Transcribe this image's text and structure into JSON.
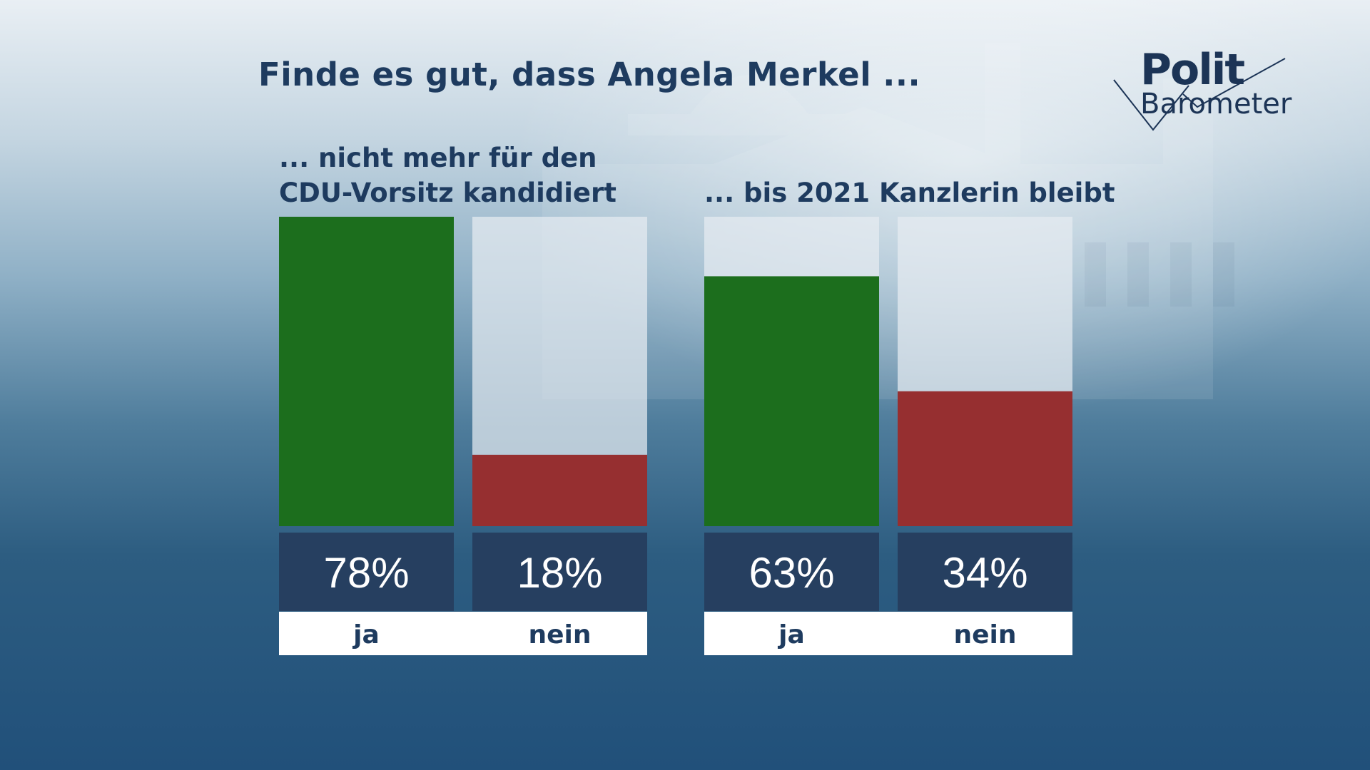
{
  "title": "Finde es gut, dass Angela Merkel ...",
  "logo": {
    "line1": "Polit",
    "line2": "Barometer"
  },
  "colors": {
    "ja": "#1c6e1d",
    "nein": "#962f30",
    "value_box": "#263f60",
    "bar_track": "#e6ecf1",
    "label_bg": "#ffffff",
    "text": "#1e3b5f"
  },
  "chart_data": [
    {
      "type": "bar",
      "title": "... nicht mehr für den CDU-Vorsitz kandidiert",
      "title_lines": [
        "... nicht mehr für den",
        "CDU-Vorsitz kandidiert"
      ],
      "categories": [
        "ja",
        "nein"
      ],
      "values": [
        78,
        18
      ],
      "value_labels": [
        "78%",
        "18%"
      ],
      "ylim": [
        0,
        78
      ],
      "unit": "%"
    },
    {
      "type": "bar",
      "title": "... bis 2021 Kanzlerin bleibt",
      "title_lines": [
        "... bis 2021 Kanzlerin bleibt"
      ],
      "categories": [
        "ja",
        "nein"
      ],
      "values": [
        63,
        34
      ],
      "value_labels": [
        "63%",
        "34%"
      ],
      "ylim": [
        0,
        78
      ],
      "unit": "%"
    }
  ]
}
